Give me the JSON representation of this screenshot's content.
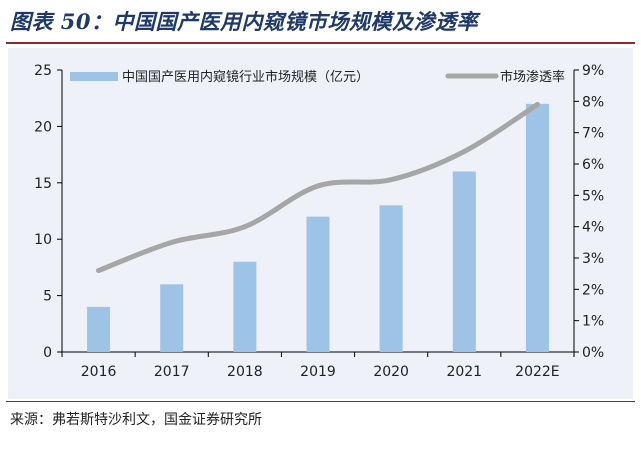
{
  "header": {
    "title": "图表 50：中国国产医用内窥镜市场规模及渗透率"
  },
  "footer": {
    "source": "来源：弗若斯特沙利文，国金证券研究所"
  },
  "chart_data": {
    "type": "bar",
    "categories": [
      "2016",
      "2017",
      "2018",
      "2019",
      "2020",
      "2021",
      "2022E"
    ],
    "series": [
      {
        "name": "中国国产医用内窥镜行业市场规模（亿元）",
        "type": "bar",
        "axis": "left",
        "color": "#9dc3e6",
        "values": [
          4,
          6,
          8,
          12,
          13,
          16,
          22
        ]
      },
      {
        "name": "市场渗透率",
        "type": "line",
        "axis": "right",
        "color": "#a6a6a6",
        "values": [
          0.026,
          0.035,
          0.04,
          0.053,
          0.055,
          0.064,
          0.079
        ]
      }
    ],
    "y_left": {
      "min": 0,
      "max": 25,
      "ticks": [
        "0",
        "5",
        "10",
        "15",
        "20",
        "25"
      ]
    },
    "y_right": {
      "min": 0,
      "max": 0.09,
      "ticks": [
        "0%",
        "1%",
        "2%",
        "3%",
        "4%",
        "5%",
        "6%",
        "7%",
        "8%",
        "9%"
      ]
    },
    "legend_position": "top",
    "grid": false
  }
}
